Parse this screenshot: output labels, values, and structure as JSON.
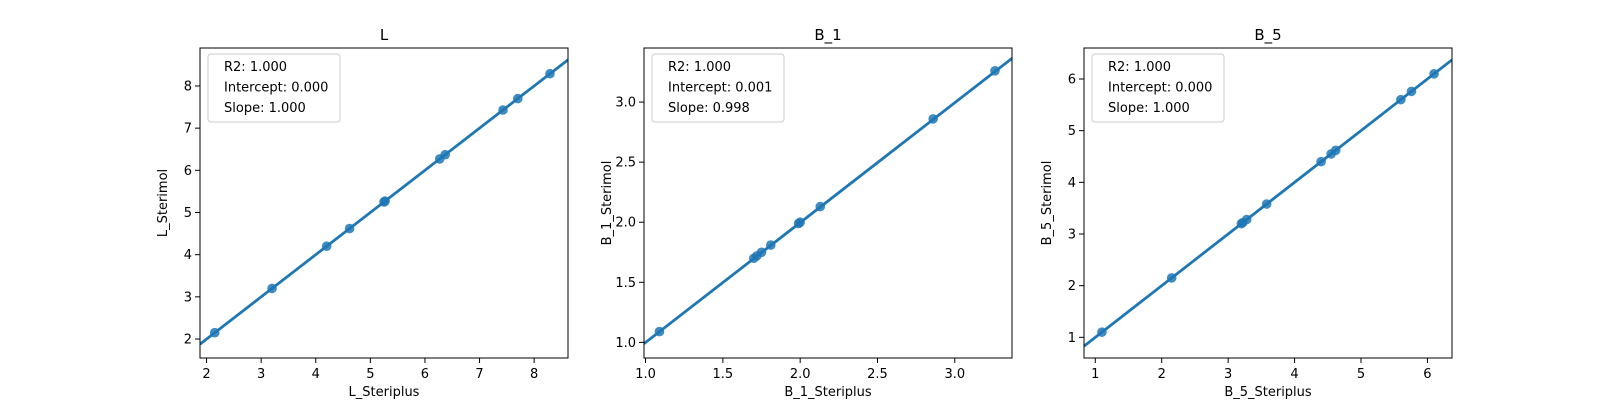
{
  "chart_data": [
    {
      "type": "scatter",
      "title": "L",
      "xlabel": "L_Steriplus",
      "ylabel": "L_Sterimol",
      "xlim": [
        1.88,
        8.62
      ],
      "ylim": [
        1.55,
        8.9
      ],
      "xticks": [
        2,
        3,
        4,
        5,
        6,
        7,
        8
      ],
      "yticks": [
        2,
        3,
        4,
        5,
        6,
        7,
        8
      ],
      "tick_labels_x": [
        "2",
        "3",
        "4",
        "5",
        "6",
        "7",
        "8"
      ],
      "tick_labels_y": [
        "2",
        "3",
        "4",
        "5",
        "6",
        "7",
        "8"
      ],
      "legend": [
        "R2: 1.000",
        "Intercept: 0.000",
        "Slope: 1.000"
      ],
      "legend_position": "upper-left",
      "regression": {
        "slope": 1.0,
        "intercept": 0.0
      },
      "series_color": "#1f77b4",
      "points": [
        [
          2.15,
          2.15
        ],
        [
          3.2,
          3.2
        ],
        [
          4.2,
          4.2
        ],
        [
          4.62,
          4.62
        ],
        [
          5.25,
          5.25
        ],
        [
          5.27,
          5.27
        ],
        [
          6.27,
          6.27
        ],
        [
          6.37,
          6.37
        ],
        [
          7.43,
          7.43
        ],
        [
          7.7,
          7.7
        ],
        [
          8.29,
          8.29
        ]
      ]
    },
    {
      "type": "scatter",
      "title": "B_1",
      "xlabel": "B_1_Steriplus",
      "ylabel": "B_1_Sterimol",
      "xlim": [
        0.99,
        3.37
      ],
      "ylim": [
        0.87,
        3.45
      ],
      "xticks": [
        1.0,
        1.5,
        2.0,
        2.5,
        3.0
      ],
      "yticks": [
        1.0,
        1.5,
        2.0,
        2.5,
        3.0
      ],
      "tick_labels_x": [
        "1.0",
        "1.5",
        "2.0",
        "2.5",
        "3.0"
      ],
      "tick_labels_y": [
        "1.0",
        "1.5",
        "2.0",
        "2.5",
        "3.0"
      ],
      "legend": [
        "R2: 1.000",
        "Intercept: 0.001",
        "Slope: 0.998"
      ],
      "legend_position": "upper-left",
      "regression": {
        "slope": 0.998,
        "intercept": 0.001
      },
      "series_color": "#1f77b4",
      "points": [
        [
          1.09,
          1.09
        ],
        [
          1.7,
          1.7
        ],
        [
          1.72,
          1.72
        ],
        [
          1.75,
          1.75
        ],
        [
          1.81,
          1.81
        ],
        [
          1.99,
          1.99
        ],
        [
          2.0,
          2.0
        ],
        [
          2.13,
          2.13
        ],
        [
          2.86,
          2.86
        ],
        [
          3.26,
          3.26
        ]
      ]
    },
    {
      "type": "scatter",
      "title": "B_5",
      "xlabel": "B_5_Steriplus",
      "ylabel": "B_5_Sterimol",
      "xlim": [
        0.83,
        6.37
      ],
      "ylim": [
        0.6,
        6.6
      ],
      "xticks": [
        1,
        2,
        3,
        4,
        5,
        6
      ],
      "yticks": [
        1,
        2,
        3,
        4,
        5,
        6
      ],
      "tick_labels_x": [
        "1",
        "2",
        "3",
        "4",
        "5",
        "6"
      ],
      "tick_labels_y": [
        "1",
        "2",
        "3",
        "4",
        "5",
        "6"
      ],
      "legend": [
        "R2: 1.000",
        "Intercept: 0.000",
        "Slope: 1.000"
      ],
      "legend_position": "upper-left",
      "regression": {
        "slope": 1.0,
        "intercept": 0.0
      },
      "series_color": "#1f77b4",
      "points": [
        [
          1.1,
          1.1
        ],
        [
          2.15,
          2.15
        ],
        [
          3.2,
          3.2
        ],
        [
          3.22,
          3.22
        ],
        [
          3.28,
          3.28
        ],
        [
          3.58,
          3.58
        ],
        [
          4.4,
          4.4
        ],
        [
          4.55,
          4.55
        ],
        [
          4.62,
          4.62
        ],
        [
          5.6,
          5.6
        ],
        [
          5.76,
          5.76
        ],
        [
          6.1,
          6.1
        ]
      ]
    }
  ]
}
